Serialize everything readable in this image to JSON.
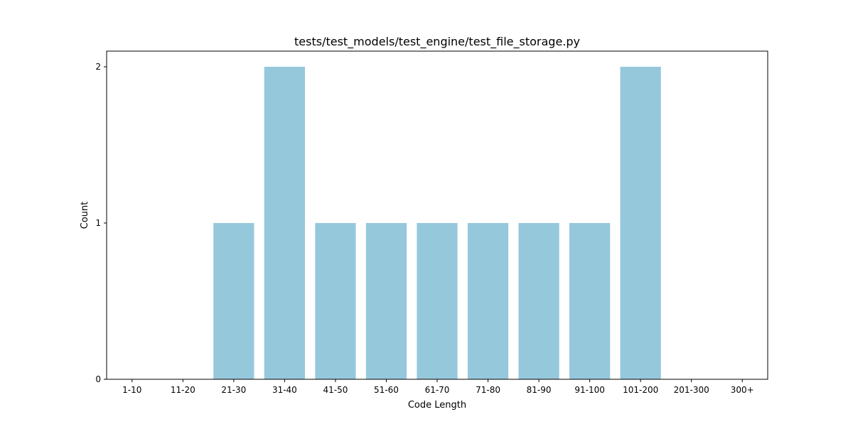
{
  "chart_data": {
    "type": "bar",
    "title": "tests/test_models/test_engine/test_file_storage.py",
    "xlabel": "Code Length",
    "ylabel": "Count",
    "categories": [
      "1-10",
      "11-20",
      "21-30",
      "31-40",
      "41-50",
      "51-60",
      "61-70",
      "71-80",
      "81-90",
      "91-100",
      "101-200",
      "201-300",
      "300+"
    ],
    "values": [
      0,
      0,
      1,
      2,
      1,
      1,
      1,
      1,
      1,
      1,
      2,
      0,
      0
    ],
    "yticks": [
      0,
      1,
      2
    ],
    "ylim": [
      0,
      2.1
    ],
    "grid": false,
    "bar_color": "#96c8dc"
  }
}
